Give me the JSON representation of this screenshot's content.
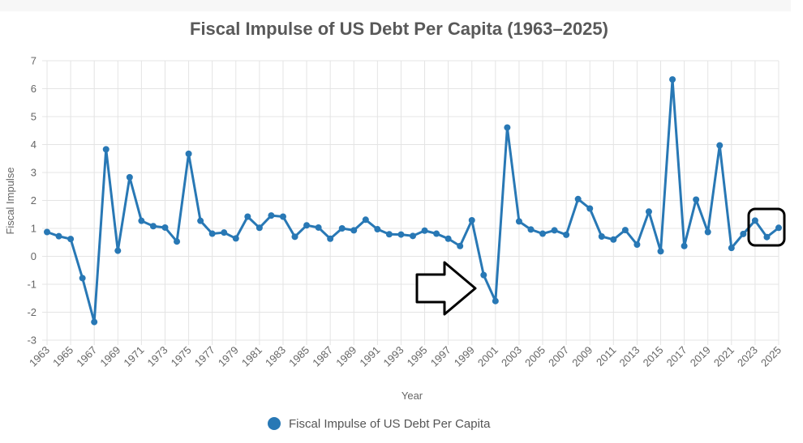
{
  "chart_data": {
    "type": "line",
    "title": "Fiscal Impulse of US Debt Per Capita (1963–2025)",
    "xlabel": "Year",
    "ylabel": "Fiscal Impulse",
    "ylim": [
      -3,
      7
    ],
    "yticks": [
      -3,
      -2,
      -1,
      0,
      1,
      2,
      3,
      4,
      5,
      6,
      7
    ],
    "grid": true,
    "legend_position": "bottom",
    "color": "#2878b5",
    "x": [
      1963,
      1964,
      1965,
      1966,
      1967,
      1968,
      1969,
      1970,
      1971,
      1972,
      1973,
      1974,
      1975,
      1976,
      1977,
      1978,
      1979,
      1980,
      1981,
      1982,
      1983,
      1984,
      1985,
      1986,
      1987,
      1988,
      1989,
      1990,
      1991,
      1992,
      1993,
      1994,
      1995,
      1996,
      1997,
      1998,
      1999,
      2000,
      2001,
      2002,
      2003,
      2004,
      2005,
      2006,
      2007,
      2008,
      2009,
      2010,
      2011,
      2012,
      2013,
      2014,
      2015,
      2016,
      2017,
      2018,
      2019,
      2020,
      2021,
      2022,
      2023,
      2024,
      2025
    ],
    "xtick_labels": [
      "1963",
      "1965",
      "1967",
      "1969",
      "1971",
      "1973",
      "1975",
      "1977",
      "1979",
      "1981",
      "1983",
      "1985",
      "1987",
      "1989",
      "1991",
      "1993",
      "1995",
      "1997",
      "1999",
      "2001",
      "2003",
      "2005",
      "2007",
      "2009",
      "2011",
      "2013",
      "2015",
      "2017",
      "2019",
      "2021",
      "2023",
      "2025"
    ],
    "series": [
      {
        "name": "Fiscal Impulse of US Debt Per Capita",
        "values": [
          0.87,
          0.72,
          0.62,
          -0.78,
          -2.35,
          3.83,
          0.2,
          2.83,
          1.27,
          1.08,
          1.03,
          0.53,
          3.67,
          1.27,
          0.81,
          0.85,
          0.64,
          1.42,
          1.02,
          1.46,
          1.42,
          0.7,
          1.11,
          1.03,
          0.63,
          1.0,
          0.93,
          1.31,
          0.97,
          0.79,
          0.78,
          0.73,
          0.92,
          0.81,
          0.63,
          0.37,
          1.29,
          -0.67,
          -1.6,
          4.61,
          1.25,
          0.96,
          0.81,
          0.93,
          0.77,
          2.05,
          1.71,
          0.71,
          0.6,
          0.94,
          0.42,
          1.6,
          0.18,
          6.33,
          0.37,
          2.03,
          0.87,
          3.97,
          0.3,
          0.8,
          1.28,
          0.69,
          1.02
        ]
      }
    ],
    "annotations": [
      {
        "type": "arrow",
        "points_to": 2000
      },
      {
        "type": "box",
        "years": [
          2023,
          2025
        ]
      }
    ]
  }
}
